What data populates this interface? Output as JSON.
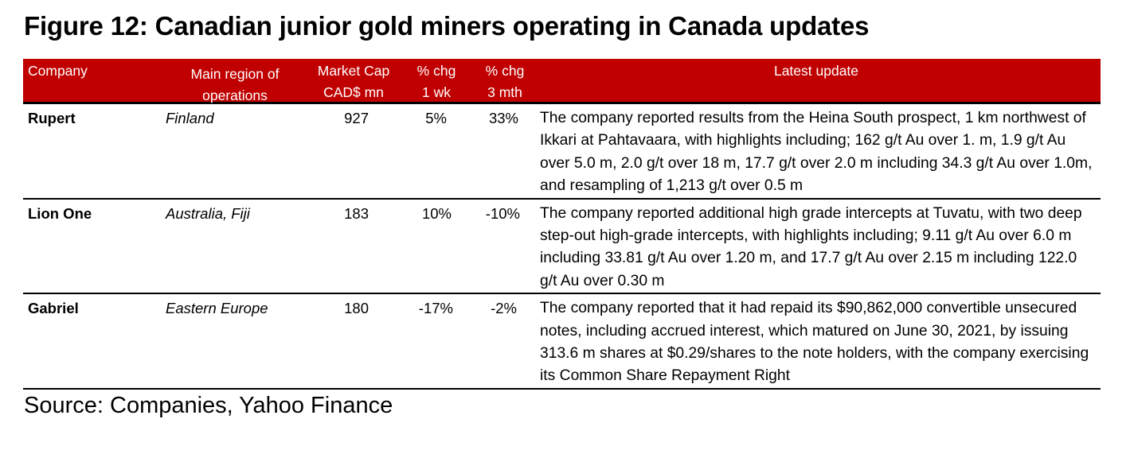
{
  "title": "Figure 12: Canadian junior gold miners operating in Canada updates",
  "header": {
    "color": "#c00000",
    "company": "Company",
    "region_l1": "Main region of",
    "region_l2": "operations",
    "mcap_l1": "Market Cap",
    "mcap_l2": "CAD$ mn",
    "wk_l1": "% chg",
    "wk_l2": "1 wk",
    "mth_l1": "% chg",
    "mth_l2": "3 mth",
    "update": "Latest update"
  },
  "rows": [
    {
      "company": "Rupert",
      "region": "Finland",
      "mcap": "927",
      "chg_1wk": "5%",
      "chg_3mth": "33%",
      "update": "The company reported results from the Heina South prospect, 1 km northwest of Ikkari at Pahtavaara, with highlights including; 162 g/t Au over 1. m, 1.9 g/t Au over 5.0 m, 2.0 g/t over 18 m, 17.7 g/t over 2.0 m including 34.3 g/t Au over 1.0m, and resampling of 1,213 g/t over 0.5 m"
    },
    {
      "company": "Lion One",
      "region": "Australia, Fiji",
      "mcap": "183",
      "chg_1wk": "10%",
      "chg_3mth": "-10%",
      "update": "The company reported additional high grade intercepts at Tuvatu, with two deep step-out high-grade intercepts, with highlights including; 9.11 g/t Au over 6.0 m including 33.81 g/t Au over 1.20 m, and 17.7 g/t Au over 2.15 m including 122.0 g/t Au over 0.30 m"
    },
    {
      "company": "Gabriel",
      "region": "Eastern Europe",
      "mcap": "180",
      "chg_1wk": "-17%",
      "chg_3mth": "-2%",
      "update": "The company reported that it had repaid its $90,862,000 convertible unsecured notes, including accrued interest, which matured on June 30, 2021, by issuing 313.6 m shares at $0.29/shares to the note holders, with the company exercising its Common Share Repayment Right"
    }
  ],
  "source": "Source: Companies, Yahoo Finance"
}
